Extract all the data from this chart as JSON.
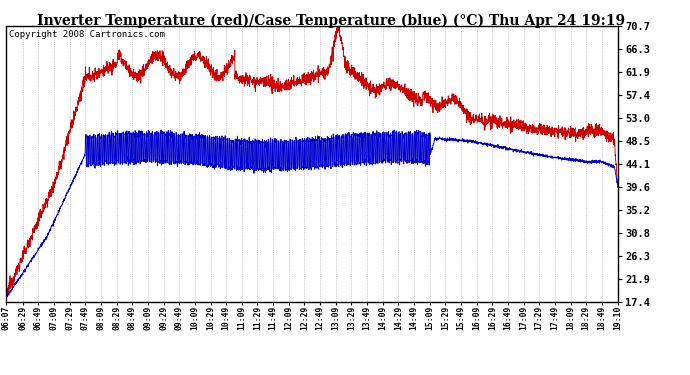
{
  "title": "Inverter Temperature (red)/Case Temperature (blue) (°C) Thu Apr 24 19:19",
  "copyright": "Copyright 2008 Cartronics.com",
  "y_ticks": [
    17.4,
    21.9,
    26.3,
    30.8,
    35.2,
    39.6,
    44.1,
    48.5,
    53.0,
    57.4,
    61.9,
    66.3,
    70.7
  ],
  "y_min": 17.4,
  "y_max": 70.7,
  "x_tick_labels": [
    "06:07",
    "06:29",
    "06:49",
    "07:09",
    "07:29",
    "07:49",
    "08:09",
    "08:29",
    "08:49",
    "09:09",
    "09:29",
    "09:49",
    "10:09",
    "10:29",
    "10:49",
    "11:09",
    "11:29",
    "11:49",
    "12:09",
    "12:29",
    "12:49",
    "13:09",
    "13:29",
    "13:49",
    "14:09",
    "14:29",
    "14:49",
    "15:09",
    "15:29",
    "15:49",
    "16:09",
    "16:29",
    "16:49",
    "17:09",
    "17:29",
    "17:49",
    "18:09",
    "18:29",
    "18:49",
    "19:10"
  ],
  "red_color": "#cc0000",
  "blue_color": "#0000cc",
  "bg_color": "#ffffff",
  "grid_color": "#aaaaaa",
  "title_fontsize": 10,
  "copyright_fontsize": 6.5
}
